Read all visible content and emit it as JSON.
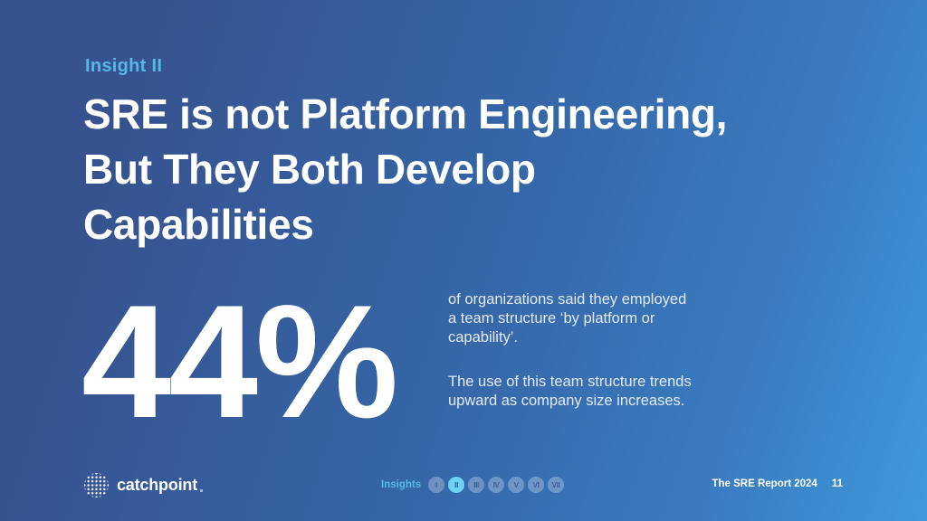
{
  "slide": {
    "kicker": "Insight II",
    "title_lines": [
      "SRE is not Platform Engineering,",
      "But They Both Develop",
      "Capabilities"
    ],
    "stat_value": "44%",
    "stat_description_1_lines": [
      "of organizations said they employed",
      "a team structure ‘by platform or",
      "capability’."
    ],
    "stat_description_2_lines": [
      "The use of this team structure trends",
      "upward as company size increases."
    ]
  },
  "footer": {
    "brand": "catchpoint",
    "nav_label": "Insights",
    "nav_items": [
      {
        "label": "I",
        "active": false
      },
      {
        "label": "II",
        "active": true
      },
      {
        "label": "III",
        "active": false
      },
      {
        "label": "IV",
        "active": false
      },
      {
        "label": "V",
        "active": false
      },
      {
        "label": "VI",
        "active": false
      },
      {
        "label": "VII",
        "active": false
      }
    ],
    "report_title": "The SRE Report 2024",
    "page_number": "11"
  },
  "colors": {
    "accent_light_blue": "#56b8e8",
    "active_nav_circle": "#6fd2f3",
    "background_gradient_start": "#36538f",
    "background_gradient_end": "#3f99dc",
    "text_white": "#ffffff"
  }
}
